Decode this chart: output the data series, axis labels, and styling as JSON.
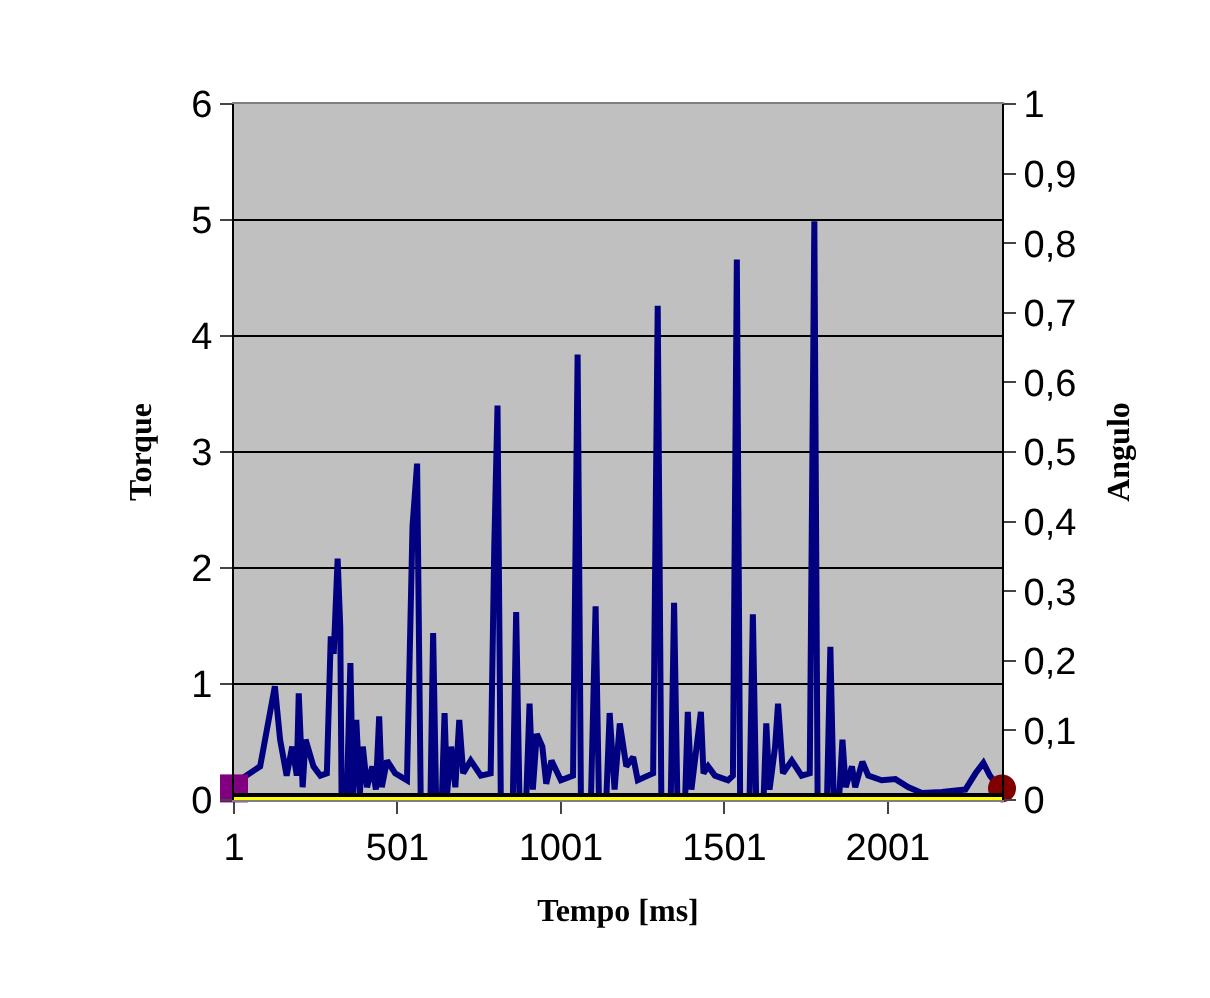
{
  "chart_data": {
    "type": "line",
    "xlabel": "Tempo [ms]",
    "ylabel": "Torque",
    "y2label": "Angulo",
    "xlim": [
      1,
      2350
    ],
    "xticks": [
      1,
      501,
      1001,
      1501,
      2001
    ],
    "ylim": [
      0,
      6
    ],
    "yticks": [
      0,
      1,
      2,
      3,
      4,
      5,
      6
    ],
    "y2lim": [
      0,
      1
    ],
    "y2ticks": [
      0,
      {
        "value": 0.1,
        "label": "0,1"
      },
      {
        "value": 0.2,
        "label": "0,2"
      },
      {
        "value": 0.3,
        "label": "0,3"
      },
      {
        "value": 0.4,
        "label": "0,4"
      },
      {
        "value": 0.5,
        "label": "0,5"
      },
      {
        "value": 0.6,
        "label": "0,6"
      },
      {
        "value": 0.7,
        "label": "0,7"
      },
      {
        "value": 0.8,
        "label": "0,8"
      },
      {
        "value": 0.9,
        "label": "0,9"
      },
      1
    ],
    "grid": "y",
    "legend": false,
    "line_style": "solid",
    "series": [
      {
        "axis": "y2",
        "color": "#000000",
        "marker": "none",
        "x": [
          1,
          2350
        ],
        "values": [
          0,
          0
        ]
      },
      {
        "color": "#000080",
        "marker": "none",
        "x": [
          1,
          81,
          126,
          142,
          162,
          179,
          193,
          199,
          211,
          220,
          244,
          265,
          285,
          297,
          306,
          318,
          326,
          330,
          346,
          357,
          365,
          375,
          386,
          395,
          408,
          424,
          435,
          445,
          453,
          469,
          494,
          530,
          547,
          561,
          572,
          602,
          610,
          619,
          637,
          645,
          653,
          665,
          678,
          690,
          702,
          725,
          756,
          786,
          797,
          807,
          817,
          854,
          864,
          874,
          895,
          905,
          915,
          927,
          944,
          956,
          972,
          1001,
          1038,
          1052,
          1062,
          1093,
          1107,
          1117,
          1140,
          1150,
          1165,
          1181,
          1201,
          1222,
          1236,
          1267,
          1283,
          1297,
          1308,
          1337,
          1347,
          1357,
          1381,
          1389,
          1400,
          1429,
          1437,
          1451,
          1472,
          1512,
          1527,
          1539,
          1549,
          1578,
          1588,
          1598,
          1621,
          1629,
          1639,
          1656,
          1665,
          1680,
          1707,
          1737,
          1762,
          1776,
          1786,
          1815,
          1825,
          1835,
          1852,
          1862,
          1872,
          1891,
          1901,
          1923,
          1941,
          1982,
          2024,
          2064,
          2105,
          2166,
          2238,
          2269,
          2293,
          2313,
          2340
        ],
        "values": [
          0.14,
          0.29,
          0.98,
          0.52,
          0.21,
          0.46,
          0.21,
          0.92,
          0.11,
          0.52,
          0.29,
          0.21,
          0.23,
          1.41,
          1.26,
          2.08,
          1.49,
          0.03,
          0.03,
          1.18,
          0.03,
          0.69,
          0.06,
          0.46,
          0.11,
          0.29,
          0.09,
          0.72,
          0.11,
          0.34,
          0.23,
          0.17,
          2.36,
          2.9,
          0.03,
          0.03,
          1.44,
          0.03,
          0.03,
          0.75,
          0.06,
          0.46,
          0.11,
          0.69,
          0.23,
          0.34,
          0.21,
          0.23,
          2.18,
          3.4,
          0.03,
          0.03,
          1.62,
          0.03,
          0.03,
          0.83,
          0.09,
          0.57,
          0.46,
          0.14,
          0.34,
          0.17,
          0.21,
          3.84,
          0.03,
          0.03,
          1.67,
          0.03,
          0.03,
          0.75,
          0.09,
          0.66,
          0.29,
          0.37,
          0.17,
          0.21,
          0.23,
          4.26,
          0.03,
          0.03,
          1.7,
          0.03,
          0.03,
          0.76,
          0.09,
          0.76,
          0.23,
          0.29,
          0.21,
          0.17,
          0.21,
          4.66,
          0.03,
          0.03,
          1.6,
          0.03,
          0.03,
          0.66,
          0.09,
          0.46,
          0.83,
          0.23,
          0.34,
          0.21,
          0.23,
          4.99,
          0.03,
          0.03,
          1.32,
          0.03,
          0.03,
          0.52,
          0.11,
          0.29,
          0.11,
          0.33,
          0.21,
          0.17,
          0.18,
          0.11,
          0.06,
          0.07,
          0.09,
          0.23,
          0.32,
          0.21,
          0.11
        ]
      },
      {
        "axis": "y2",
        "color": "#ffff00",
        "marker": "none",
        "x": [
          1,
          2350
        ],
        "values": [
          0,
          0
        ]
      },
      {
        "type": "scatter",
        "color": "#800080",
        "marker": "square",
        "x": [
          1
        ],
        "values": [
          0.1
        ]
      },
      {
        "type": "scatter",
        "color": "#800000",
        "marker": "circle",
        "x": [
          2350
        ],
        "values": [
          0.1
        ]
      }
    ]
  }
}
